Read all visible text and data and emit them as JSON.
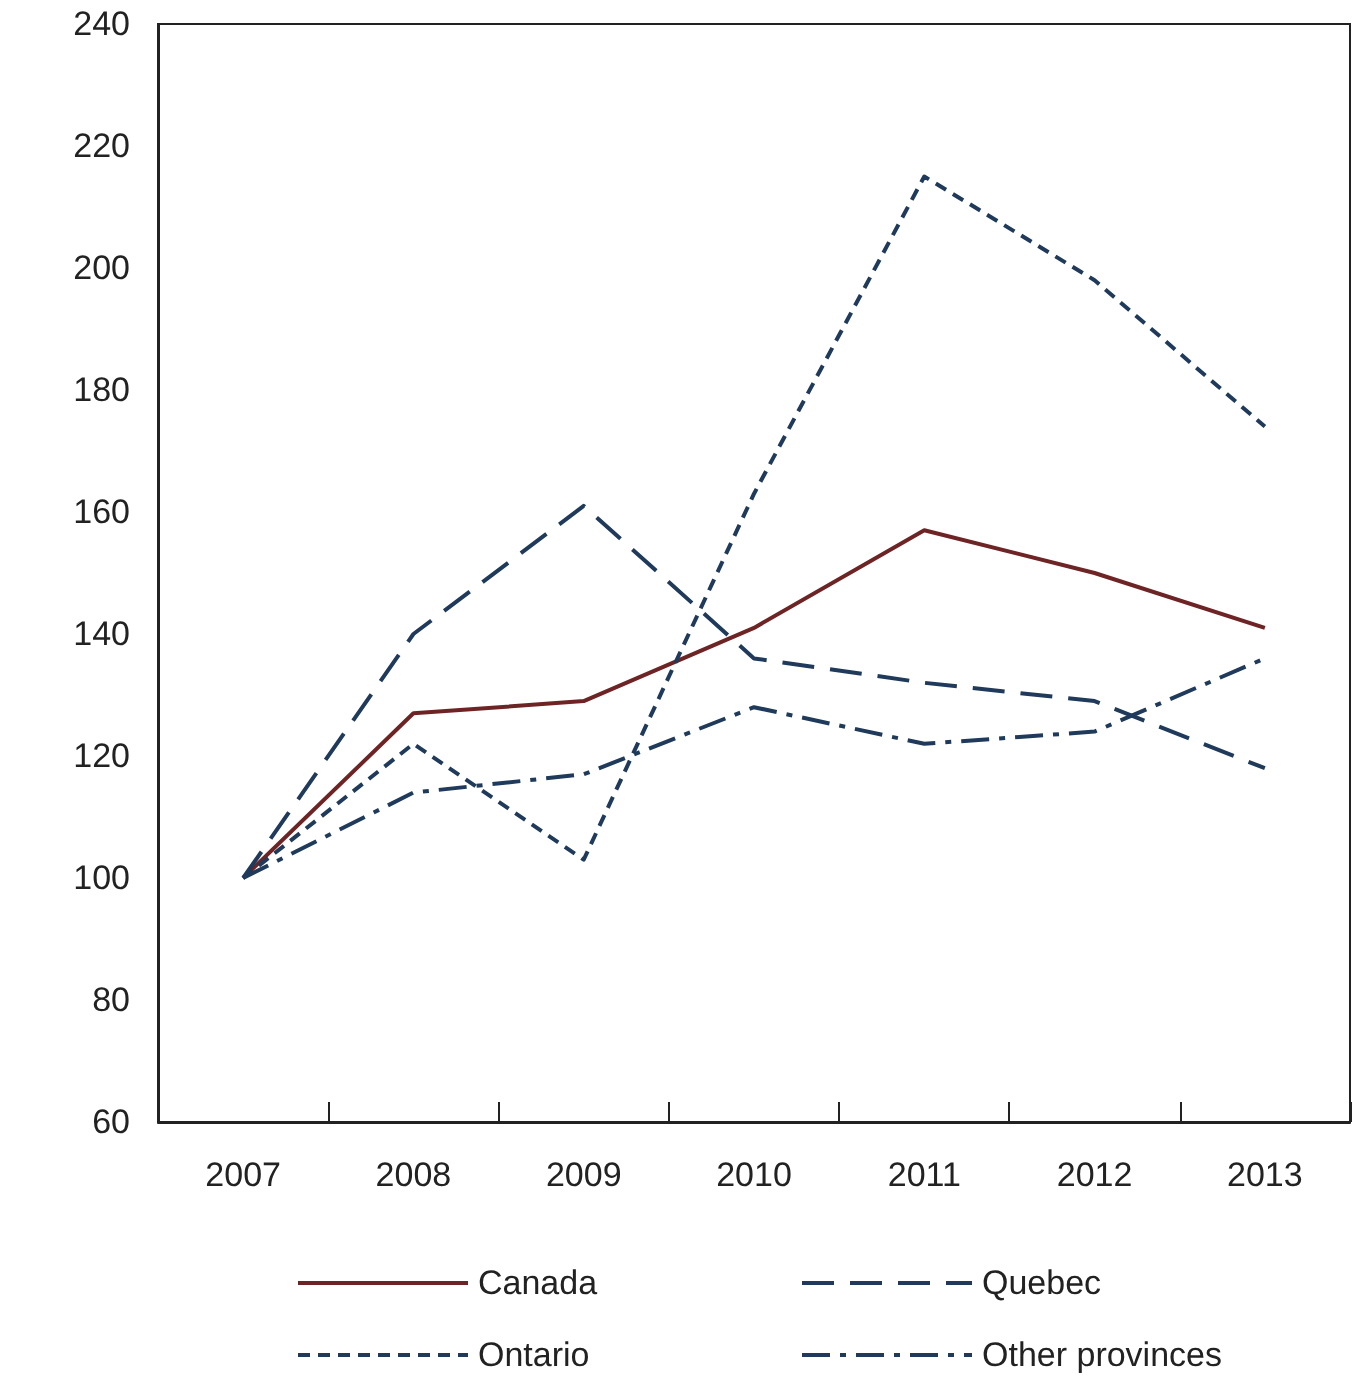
{
  "chart_data": {
    "type": "line",
    "categories": [
      "2007",
      "2008",
      "2009",
      "2010",
      "2011",
      "2012",
      "2013"
    ],
    "series": [
      {
        "name": "Canada",
        "color": "#6e2424",
        "line_style": "solid",
        "values": [
          100,
          127,
          129,
          141,
          157,
          150,
          141
        ]
      },
      {
        "name": "Quebec",
        "color": "#1f3a5a",
        "line_style": "dashed",
        "values": [
          100,
          140,
          161,
          136,
          132,
          129,
          118
        ]
      },
      {
        "name": "Ontario",
        "color": "#1f3a5a",
        "line_style": "dotted",
        "values": [
          100,
          122,
          103,
          163,
          215,
          198,
          174
        ]
      },
      {
        "name": "Other provinces",
        "color": "#1f3a5a",
        "line_style": "dashdot",
        "values": [
          100,
          114,
          117,
          128,
          122,
          124,
          136
        ]
      }
    ],
    "ylim": [
      60,
      240
    ],
    "yticks": [
      60,
      80,
      100,
      120,
      140,
      160,
      180,
      200,
      220,
      240
    ],
    "grid": false,
    "legend": "bottom",
    "marker": "none"
  }
}
